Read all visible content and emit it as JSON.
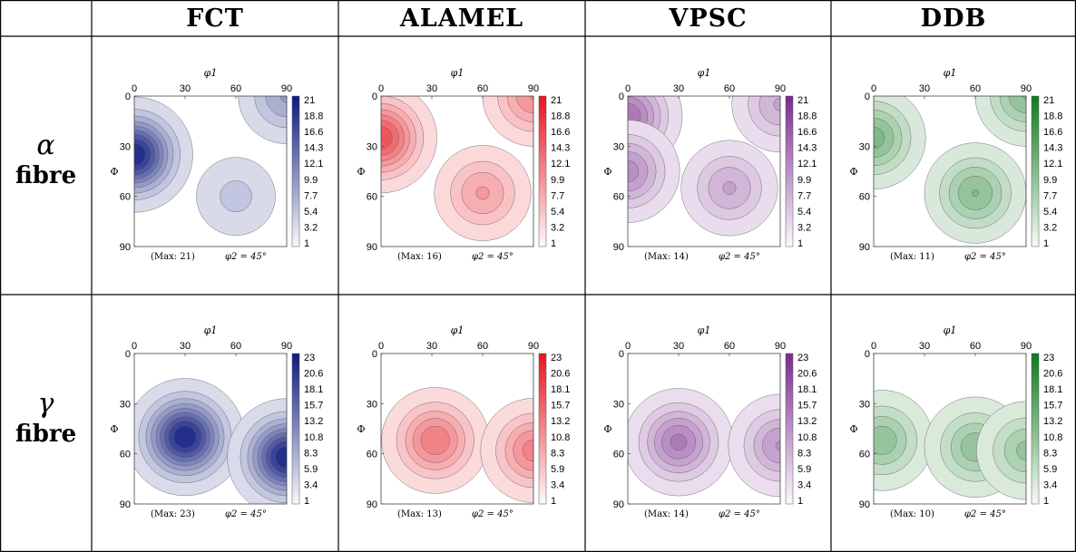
{
  "headers": [
    "FCT",
    "ALAMEL",
    "VPSC",
    "DDB"
  ],
  "rows": [
    {
      "symbol": "α",
      "label": "fibre"
    },
    {
      "symbol": "γ",
      "label": "fibre"
    }
  ],
  "colors": {
    "FCT": "#0d1a80",
    "ALAMEL": "#e8141e",
    "VPSC": "#7a2b8e",
    "DDB": "#0f7a1e"
  },
  "chart_data": [
    {
      "type": "heatmap",
      "row": "alpha",
      "method": "FCT",
      "xlabel": "φ1",
      "ylabel": "Φ",
      "xlim": [
        0,
        90
      ],
      "ylim": [
        0,
        90
      ],
      "xticks": [
        "0",
        "30",
        "60",
        "90"
      ],
      "yticks": [
        "0",
        "30",
        "60",
        "90"
      ],
      "colorbar_ticks": [
        "21",
        "18.8",
        "16.6",
        "14.3",
        "12.1",
        "9.9",
        "7.7",
        "5.4",
        "3.2",
        "1"
      ],
      "max_label": "(Max: 21)",
      "section_label": "φ2 = 45°",
      "peaks": [
        {
          "phi1": 0,
          "Phi": 35,
          "value": 21
        },
        {
          "phi1": 90,
          "Phi": 0,
          "value": 8
        },
        {
          "phi1": 60,
          "Phi": 60,
          "value": 4
        }
      ]
    },
    {
      "type": "heatmap",
      "row": "alpha",
      "method": "ALAMEL",
      "xlabel": "φ1",
      "ylabel": "Φ",
      "xlim": [
        0,
        90
      ],
      "ylim": [
        0,
        90
      ],
      "xticks": [
        "0",
        "30",
        "60",
        "90"
      ],
      "yticks": [
        "0",
        "30",
        "60",
        "90"
      ],
      "colorbar_ticks": [
        "21",
        "18.8",
        "16.6",
        "14.3",
        "12.1",
        "9.9",
        "7.7",
        "5.4",
        "3.2",
        "1"
      ],
      "max_label": "(Max: 16)",
      "section_label": "φ2 = 45°",
      "peaks": [
        {
          "phi1": 0,
          "Phi": 25,
          "value": 16
        },
        {
          "phi1": 90,
          "Phi": 0,
          "value": 10
        },
        {
          "phi1": 60,
          "Phi": 58,
          "value": 8
        }
      ]
    },
    {
      "type": "heatmap",
      "row": "alpha",
      "method": "VPSC",
      "xlabel": "φ1",
      "ylabel": "Φ",
      "xlim": [
        0,
        90
      ],
      "ylim": [
        0,
        90
      ],
      "xticks": [
        "0",
        "30",
        "60",
        "90"
      ],
      "yticks": [
        "0",
        "30",
        "60",
        "90"
      ],
      "colorbar_ticks": [
        "21",
        "18.8",
        "16.6",
        "14.3",
        "12.1",
        "9.9",
        "7.7",
        "5.4",
        "3.2",
        "1"
      ],
      "max_label": "(Max: 14)",
      "section_label": "φ2 = 45°",
      "peaks": [
        {
          "phi1": 0,
          "Phi": 12,
          "value": 14
        },
        {
          "phi1": 0,
          "Phi": 45,
          "value": 11
        },
        {
          "phi1": 90,
          "Phi": 5,
          "value": 8
        },
        {
          "phi1": 60,
          "Phi": 55,
          "value": 8
        }
      ]
    },
    {
      "type": "heatmap",
      "row": "alpha",
      "method": "DDB",
      "xlabel": "φ1",
      "ylabel": "Φ",
      "xlim": [
        0,
        90
      ],
      "ylim": [
        0,
        90
      ],
      "xticks": [
        "0",
        "30",
        "60",
        "90"
      ],
      "yticks": [
        "0",
        "30",
        "60",
        "90"
      ],
      "colorbar_ticks": [
        "21",
        "18.8",
        "16.6",
        "14.3",
        "12.1",
        "9.9",
        "7.7",
        "5.4",
        "3.2",
        "1"
      ],
      "max_label": "(Max: 11)",
      "section_label": "φ2 = 45°",
      "peaks": [
        {
          "phi1": 0,
          "Phi": 25,
          "value": 11
        },
        {
          "phi1": 90,
          "Phi": 0,
          "value": 10
        },
        {
          "phi1": 60,
          "Phi": 58,
          "value": 10
        }
      ]
    },
    {
      "type": "heatmap",
      "row": "gamma",
      "method": "FCT",
      "xlabel": "φ1",
      "ylabel": "Φ",
      "xlim": [
        0,
        90
      ],
      "ylim": [
        0,
        90
      ],
      "xticks": [
        "0",
        "30",
        "60",
        "90"
      ],
      "yticks": [
        "0",
        "30",
        "60",
        "90"
      ],
      "colorbar_ticks": [
        "23",
        "20.6",
        "18.1",
        "15.7",
        "13.2",
        "10.8",
        "8.3",
        "5.9",
        "3.4",
        "1"
      ],
      "max_label": "(Max: 23)",
      "section_label": "φ2 = 45°",
      "peaks": [
        {
          "phi1": 30,
          "Phi": 50,
          "value": 23
        },
        {
          "phi1": 90,
          "Phi": 62,
          "value": 23
        }
      ]
    },
    {
      "type": "heatmap",
      "row": "gamma",
      "method": "ALAMEL",
      "xlabel": "φ1",
      "ylabel": "Φ",
      "xlim": [
        0,
        90
      ],
      "ylim": [
        0,
        90
      ],
      "xticks": [
        "0",
        "30",
        "60",
        "90"
      ],
      "yticks": [
        "0",
        "30",
        "60",
        "90"
      ],
      "colorbar_ticks": [
        "23",
        "20.6",
        "18.1",
        "15.7",
        "13.2",
        "10.8",
        "8.3",
        "5.9",
        "3.4",
        "1"
      ],
      "max_label": "(Max: 13)",
      "section_label": "φ2 = 45°",
      "peaks": [
        {
          "phi1": 32,
          "Phi": 52,
          "value": 13
        },
        {
          "phi1": 90,
          "Phi": 58,
          "value": 12
        }
      ]
    },
    {
      "type": "heatmap",
      "row": "gamma",
      "method": "VPSC",
      "xlabel": "φ1",
      "ylabel": "Φ",
      "xlim": [
        0,
        90
      ],
      "ylim": [
        0,
        90
      ],
      "xticks": [
        "0",
        "30",
        "60",
        "90"
      ],
      "yticks": [
        "0",
        "30",
        "60",
        "90"
      ],
      "colorbar_ticks": [
        "23",
        "20.6",
        "18.1",
        "15.7",
        "13.2",
        "10.8",
        "8.3",
        "5.9",
        "3.4",
        "1"
      ],
      "max_label": "(Max: 14)",
      "section_label": "φ2 = 45°",
      "peaks": [
        {
          "phi1": 30,
          "Phi": 53,
          "value": 14
        },
        {
          "phi1": 90,
          "Phi": 55,
          "value": 11
        }
      ]
    },
    {
      "type": "heatmap",
      "row": "gamma",
      "method": "DDB",
      "xlabel": "φ1",
      "ylabel": "Φ",
      "xlim": [
        0,
        90
      ],
      "ylim": [
        0,
        90
      ],
      "xticks": [
        "0",
        "30",
        "60",
        "90"
      ],
      "yticks": [
        "0",
        "30",
        "60",
        "90"
      ],
      "colorbar_ticks": [
        "23",
        "20.6",
        "18.1",
        "15.7",
        "13.2",
        "10.8",
        "8.3",
        "5.9",
        "3.4",
        "1"
      ],
      "max_label": "(Max: 10)",
      "section_label": "φ2 = 45°",
      "peaks": [
        {
          "phi1": 5,
          "Phi": 52,
          "value": 10
        },
        {
          "phi1": 60,
          "Phi": 56,
          "value": 10
        },
        {
          "phi1": 90,
          "Phi": 58,
          "value": 9
        }
      ]
    }
  ]
}
